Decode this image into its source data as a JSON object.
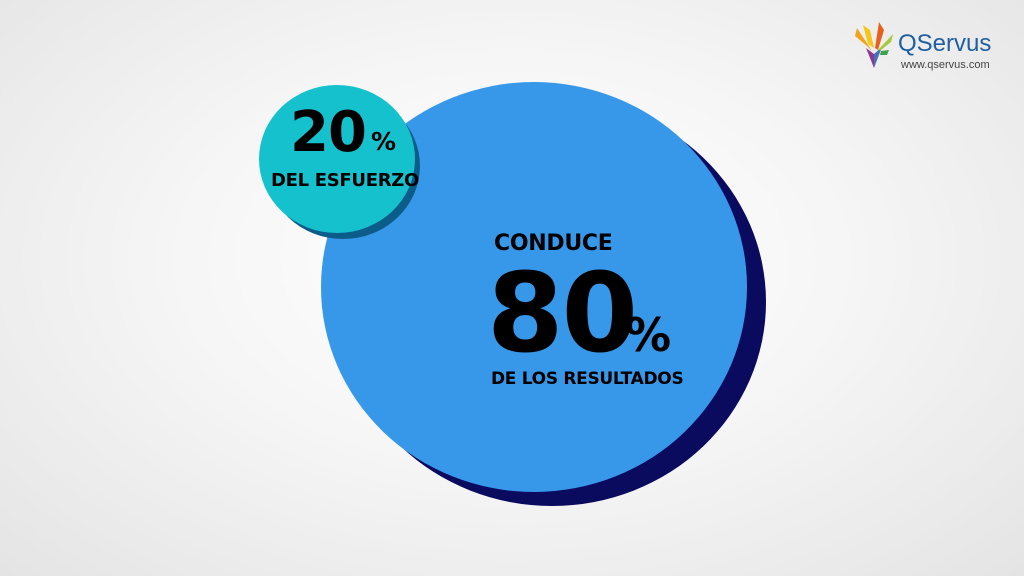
{
  "effort": {
    "value": "20",
    "unit": "%",
    "label": "DEL ESFUERZO"
  },
  "result": {
    "prefix": "CONDUCE",
    "value": "80",
    "unit": "%",
    "label": "DE LOS RESULTADOS"
  },
  "brand": {
    "name": "QServus",
    "url": "www.qservus.com",
    "icon": "bird-logo-icon"
  },
  "colors": {
    "big_circle": "#3797e8",
    "big_circle_shadow": "#0a0a5e",
    "small_circle": "#16c1ce",
    "small_circle_shadow": "#0c5c8a",
    "brand_text": "#1f5f9f"
  }
}
